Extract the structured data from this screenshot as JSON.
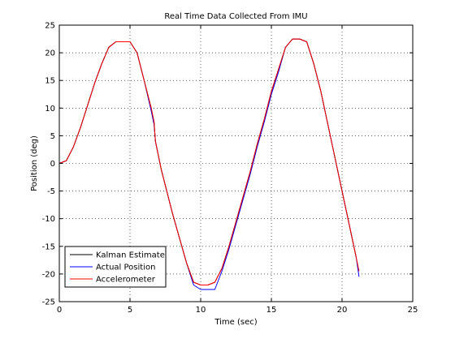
{
  "chart_data": {
    "type": "line",
    "title": "Real Time Data Collected From IMU",
    "xlabel": "Time (sec)",
    "ylabel": "Position (deg)",
    "xlim": [
      0,
      25
    ],
    "ylim": [
      -25,
      25
    ],
    "xticks": [
      0,
      5,
      10,
      15,
      20,
      25
    ],
    "yticks": [
      -25,
      -20,
      -15,
      -10,
      -5,
      0,
      5,
      10,
      15,
      20,
      25
    ],
    "xtick_labels": [
      "0",
      "5",
      "10",
      "15",
      "20",
      "25"
    ],
    "ytick_labels": [
      "-25",
      "-20",
      "-15",
      "-10",
      "-5",
      "0",
      "5",
      "10",
      "15",
      "20",
      "25"
    ],
    "grid": true,
    "legend_position": "bottom-left",
    "series": [
      {
        "name": "Kalman Estimate",
        "color": "#000000",
        "x": [
          0,
          0.5,
          1.0,
          1.5,
          2.0,
          2.5,
          3.0,
          3.5,
          4.0,
          4.5,
          5.0,
          5.5,
          6.0,
          6.5,
          6.7,
          6.8,
          7.2,
          7.5,
          8.0,
          8.5,
          9.0,
          9.5,
          10.0,
          10.5,
          11.0,
          11.5,
          12.0,
          12.5,
          13.0,
          13.5,
          14.0,
          14.5,
          15.0,
          15.5,
          16.0,
          16.5,
          17.0,
          17.5,
          18.0,
          18.5,
          19.0,
          19.5,
          20.0,
          20.5,
          21.0
        ],
        "y": [
          0,
          0.5,
          3.0,
          6.5,
          10.5,
          14.5,
          18.0,
          21.0,
          22.0,
          22.0,
          22.0,
          20.0,
          15.0,
          10.0,
          7.5,
          4.0,
          -1.0,
          -4.0,
          -9.0,
          -13.5,
          -18.0,
          -21.5,
          -22.0,
          -22.0,
          -21.5,
          -19.0,
          -15.0,
          -10.5,
          -6.0,
          -1.5,
          3.5,
          8.0,
          13.0,
          17.0,
          21.0,
          22.5,
          22.5,
          22.0,
          18.0,
          13.0,
          7.0,
          1.0,
          -5.0,
          -11.0,
          -17.0
        ]
      },
      {
        "name": "Actual Position",
        "color": "#0000ff",
        "x": [
          0,
          0.5,
          1.0,
          1.5,
          2.0,
          2.5,
          3.0,
          3.5,
          4.0,
          4.5,
          5.0,
          5.5,
          6.0,
          6.5,
          6.7,
          6.8,
          7.2,
          7.5,
          8.0,
          8.5,
          9.0,
          9.5,
          10.0,
          10.5,
          11.0,
          11.5,
          12.0,
          12.5,
          13.0,
          13.5,
          14.0,
          14.5,
          15.0,
          15.5,
          16.0,
          16.5,
          17.0,
          17.5,
          18.0,
          18.5,
          19.0,
          19.5,
          20.0,
          20.5,
          21.0,
          21.2
        ],
        "y": [
          0,
          0.5,
          3.0,
          6.5,
          10.5,
          14.5,
          18.0,
          21.0,
          22.0,
          22.0,
          22.0,
          20.0,
          15.0,
          9.5,
          7.0,
          4.0,
          -1.0,
          -4.0,
          -9.0,
          -13.5,
          -18.0,
          -22.0,
          -22.8,
          -22.8,
          -22.8,
          -19.5,
          -15.5,
          -11.0,
          -6.5,
          -2.0,
          3.0,
          7.5,
          12.5,
          16.5,
          21.0,
          22.5,
          22.5,
          22.0,
          18.0,
          13.0,
          7.0,
          1.0,
          -5.0,
          -11.0,
          -17.0,
          -20.5
        ]
      },
      {
        "name": "Accelerometer",
        "color": "#ff0000",
        "x": [
          0,
          0.5,
          1.0,
          1.5,
          2.0,
          2.5,
          3.0,
          3.5,
          4.0,
          4.5,
          5.0,
          5.5,
          6.0,
          6.5,
          6.7,
          6.8,
          7.2,
          7.5,
          8.0,
          8.5,
          9.0,
          9.5,
          10.0,
          10.5,
          11.0,
          11.5,
          12.0,
          12.5,
          13.0,
          13.5,
          14.0,
          14.5,
          15.0,
          15.5,
          16.0,
          16.5,
          17.0,
          17.5,
          18.0,
          18.5,
          19.0,
          19.5,
          20.0,
          20.5,
          21.0,
          21.2
        ],
        "y": [
          0,
          0.5,
          3.0,
          6.5,
          10.5,
          14.5,
          18.0,
          21.0,
          22.0,
          22.0,
          22.0,
          20.0,
          15.0,
          10.0,
          7.5,
          4.0,
          -1.0,
          -4.0,
          -9.0,
          -13.5,
          -18.0,
          -21.5,
          -22.0,
          -22.0,
          -21.5,
          -19.0,
          -15.0,
          -10.5,
          -6.0,
          -1.5,
          3.5,
          8.0,
          13.0,
          17.0,
          21.0,
          22.5,
          22.5,
          22.0,
          18.0,
          13.0,
          7.0,
          1.0,
          -5.0,
          -11.0,
          -17.0,
          -19.5
        ]
      }
    ]
  }
}
